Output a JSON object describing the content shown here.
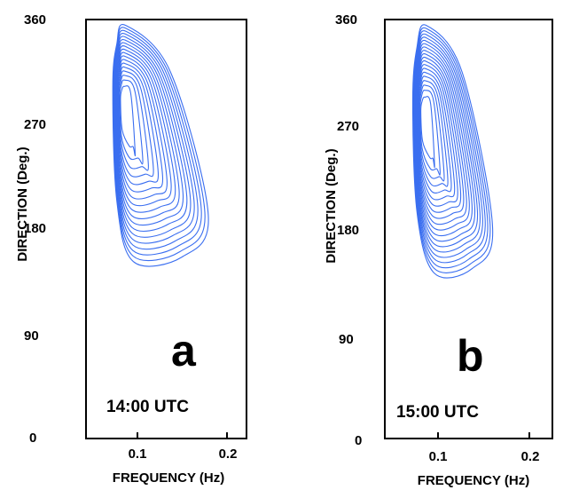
{
  "chart_data": [
    {
      "type": "contour",
      "panel_letter": "a",
      "time_label": "14:00 UTC",
      "xlabel": "FREQUENCY (Hz)",
      "ylabel": "DIRECTION (Deg.)",
      "xlim": [
        0.04,
        0.25
      ],
      "ylim": [
        0,
        360
      ],
      "x_ticks": [
        "0.1",
        "0.2"
      ],
      "y_ticks": [
        "0",
        "90",
        "180",
        "270",
        "360"
      ],
      "contour_color": "#3a6ef0",
      "peak": {
        "frequency": 0.09,
        "direction": 290
      },
      "contour_levels": 18,
      "extent": {
        "freq_min": 0.075,
        "freq_max": 0.2,
        "dir_min": 152,
        "dir_max": 355
      }
    },
    {
      "type": "contour",
      "panel_letter": "b",
      "time_label": "15:00 UTC",
      "xlabel": "FREQUENCY (Hz)",
      "ylabel": "DIRECTION (Deg.)",
      "xlim": [
        0.04,
        0.25
      ],
      "ylim": [
        0,
        360
      ],
      "x_ticks": [
        "0.1",
        "0.2"
      ],
      "y_ticks": [
        "0",
        "90",
        "180",
        "270",
        "360"
      ],
      "contour_color": "#3a6ef0",
      "peak": {
        "frequency": 0.09,
        "direction": 280
      },
      "contour_levels": 20,
      "extent": {
        "freq_min": 0.075,
        "freq_max": 0.175,
        "dir_min": 142,
        "dir_max": 355
      }
    }
  ]
}
